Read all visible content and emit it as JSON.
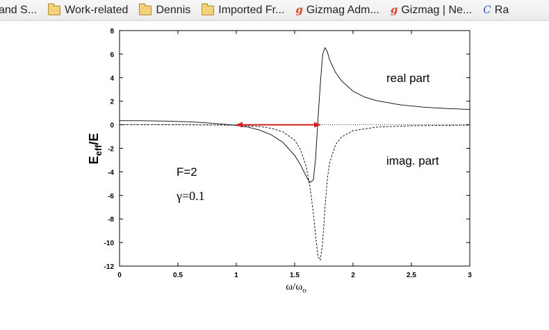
{
  "bookmarks_bar": {
    "items": [
      {
        "label": "and S...",
        "icon": "none"
      },
      {
        "label": "Work-related",
        "icon": "folder-icon"
      },
      {
        "label": "Dennis",
        "icon": "folder-icon"
      },
      {
        "label": "Imported Fr...",
        "icon": "folder-icon"
      },
      {
        "label": "Gizmag Adm...",
        "icon": "gizmag-icon",
        "glyph": "g"
      },
      {
        "label": "Gizmag | Ne...",
        "icon": "gizmag-icon",
        "glyph": "g"
      },
      {
        "label": "Ra",
        "icon": "c-icon",
        "glyph": "C"
      }
    ]
  },
  "chart_data": {
    "type": "line",
    "xlabel": "ω/ω",
    "xlabel_sub": "o",
    "ylabel": "E",
    "ylabel_sub": "eff",
    "ylabel_tail": "/E",
    "xlim": [
      0,
      3
    ],
    "ylim": [
      -12,
      8
    ],
    "xticks": [
      "0",
      "0.5",
      "1",
      "1.5",
      "2",
      "2.5",
      "3"
    ],
    "yticks": [
      "8",
      "6",
      "4",
      "2",
      "0",
      "-2",
      "-4",
      "-6",
      "-8",
      "-10",
      "-12"
    ],
    "grid": false,
    "annotations": {
      "real_part": "real part",
      "imag_part": "imag. part",
      "F": "F=2",
      "gamma": "γ=0.1"
    },
    "arrow": {
      "x_start": 1.0,
      "x_end": 1.72,
      "y": 0,
      "color": "#d42020",
      "style": "double-headed"
    },
    "series": [
      {
        "style": "solid",
        "x": [
          0,
          0.2,
          0.4,
          0.6,
          0.8,
          1.0,
          1.1,
          1.2,
          1.3,
          1.4,
          1.5,
          1.55,
          1.6,
          1.63,
          1.66,
          1.68,
          1.7,
          1.72,
          1.74,
          1.76,
          1.78,
          1.8,
          1.85,
          1.9,
          2.0,
          2.1,
          2.2,
          2.4,
          2.6,
          2.8,
          3.0
        ],
        "values": [
          0.35,
          0.34,
          0.31,
          0.25,
          0.13,
          -0.05,
          -0.2,
          -0.45,
          -0.85,
          -1.5,
          -2.6,
          -3.4,
          -4.4,
          -4.9,
          -4.7,
          -2.8,
          0.5,
          3.5,
          6.0,
          6.55,
          6.2,
          5.5,
          4.45,
          3.75,
          2.85,
          2.35,
          2.05,
          1.7,
          1.5,
          1.38,
          1.3
        ]
      },
      {
        "style": "dashed",
        "x": [
          0,
          0.5,
          0.8,
          1.0,
          1.2,
          1.3,
          1.4,
          1.5,
          1.55,
          1.6,
          1.63,
          1.66,
          1.68,
          1.7,
          1.72,
          1.74,
          1.76,
          1.78,
          1.8,
          1.85,
          1.9,
          2.0,
          2.2,
          2.5,
          3.0
        ],
        "values": [
          0.0,
          0.0,
          -0.02,
          -0.04,
          -0.15,
          -0.3,
          -0.6,
          -1.3,
          -2.1,
          -3.6,
          -5.2,
          -7.5,
          -9.5,
          -11.2,
          -11.5,
          -10.0,
          -7.0,
          -4.6,
          -3.2,
          -1.7,
          -1.05,
          -0.5,
          -0.2,
          -0.08,
          -0.03
        ]
      },
      {
        "style": "dotted",
        "x": [
          0,
          3
        ],
        "values": [
          0,
          0
        ]
      }
    ]
  }
}
